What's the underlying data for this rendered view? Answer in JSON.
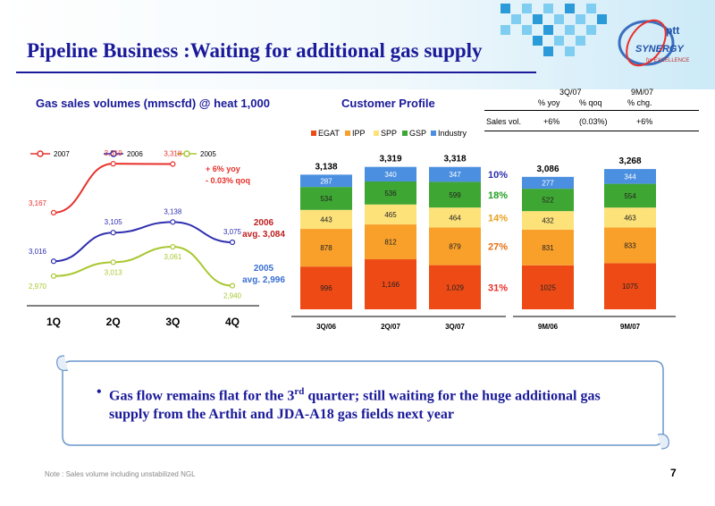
{
  "slide": {
    "title": "Pipeline Business :Waiting for additional gas supply",
    "page_number": "7",
    "footnote": "Note : Sales volume including unstabilized NGL",
    "bullet": {
      "marker": "•",
      "text_before": "Gas flow remains flat for the 3",
      "superscript": "rd",
      "text_line1_after": " quarter; still waiting for the huge additional gas",
      "text_line2": "supply from the Arthit and JDA-A18 gas fields next year"
    },
    "logo": {
      "brand": "ptt",
      "line1": "SYNERGY",
      "line2": "for EXCELLENCE"
    }
  },
  "stats": {
    "col1_header": "3Q/07",
    "col2_header": "9M/07",
    "sub_yoy": "% yoy",
    "sub_qoq": "% qoq",
    "sub_chg": "% chg.",
    "row_label": "Sales vol.",
    "yoy": "+6%",
    "qoq": "(0.03%)",
    "chg": "+6%"
  },
  "chart_data": [
    {
      "type": "line",
      "title": "Gas sales volumes (mmscfd) @ heat 1,000",
      "categories": [
        "1Q",
        "2Q",
        "3Q",
        "4Q"
      ],
      "series": [
        {
          "name": "2007",
          "color": "#e8302a",
          "values": [
            3167,
            3319,
            3318,
            null
          ],
          "labels": [
            "3,167",
            "3,319",
            "3,318",
            ""
          ]
        },
        {
          "name": "2006",
          "color": "#2f2fb0",
          "values": [
            3016,
            3105,
            3138,
            3075
          ],
          "labels": [
            "3,016",
            "3,105",
            "3,138",
            "3,075"
          ]
        },
        {
          "name": "2005",
          "color": "#a8c832",
          "values": [
            2970,
            3013,
            3061,
            2940
          ],
          "labels": [
            "2,970",
            "3,013",
            "3,061",
            "2,940"
          ]
        }
      ],
      "annotations": {
        "yoy": "+   6%  yoy",
        "qoq": "- 0.03%  qoq",
        "avg2006_year": "2006",
        "avg2006_value": "avg. 3,084",
        "avg2005_year": "2005",
        "avg2005_value": "avg. 2,996"
      },
      "ylim": [
        2900,
        3350
      ],
      "legend": "top"
    },
    {
      "type": "bar",
      "title": "Customer Profile",
      "stacked": true,
      "categories": [
        "3Q/06",
        "2Q/07",
        "3Q/07",
        "9M/06",
        "9M/07"
      ],
      "totals": [
        "3,138",
        "3,319",
        "3,318",
        "3,086",
        "3,268"
      ],
      "total_values": [
        3138,
        3319,
        3318,
        3086,
        3268
      ],
      "series": [
        {
          "name": "EGAT",
          "color": "#ee4a16",
          "values": [
            996,
            1166,
            1029,
            1025,
            1075
          ],
          "labels": [
            "996",
            "1,166",
            "1,029",
            "1025",
            "1075"
          ]
        },
        {
          "name": "IPP",
          "color": "#f9a02a",
          "values": [
            878,
            812,
            879,
            831,
            833
          ],
          "labels": [
            "878",
            "812",
            "879",
            "831",
            "833"
          ]
        },
        {
          "name": "SPP",
          "color": "#fde27a",
          "values": [
            443,
            465,
            464,
            432,
            463
          ],
          "labels": [
            "443",
            "465",
            "464",
            "432",
            "463"
          ]
        },
        {
          "name": "GSP",
          "color": "#3ea632",
          "values": [
            534,
            536,
            599,
            522,
            554
          ],
          "labels": [
            "534",
            "536",
            "599",
            "522",
            "554"
          ]
        },
        {
          "name": "Industry",
          "color": "#4b8fe0",
          "values": [
            287,
            340,
            347,
            277,
            344
          ],
          "labels": [
            "287",
            "340",
            "347",
            "277",
            "344"
          ]
        }
      ],
      "share_labels": [
        {
          "text": "10%",
          "color": "#2f2fb0"
        },
        {
          "text": "18%",
          "color": "#22a022"
        },
        {
          "text": "14%",
          "color": "#e8a020"
        },
        {
          "text": "27%",
          "color": "#e87010"
        },
        {
          "text": "31%",
          "color": "#e8302a"
        }
      ],
      "legend": "top"
    }
  ]
}
